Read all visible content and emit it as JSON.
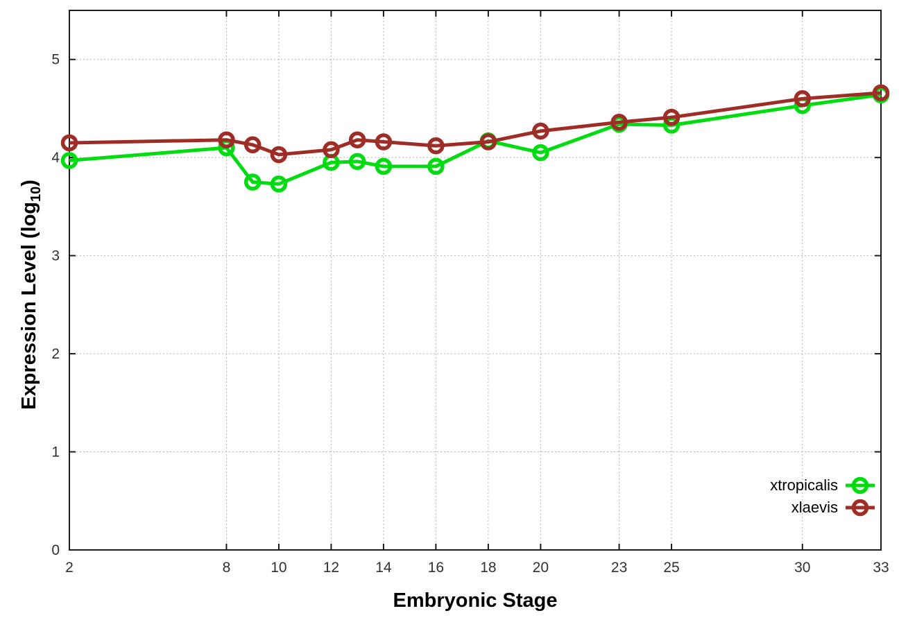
{
  "chart_data": {
    "type": "line",
    "title": "",
    "xlabel": "Embryonic Stage",
    "ylabel": {
      "prefix": "Expression Level (log",
      "sub": "10",
      "suffix": ")"
    },
    "x": [
      2,
      8,
      9,
      10,
      12,
      13,
      14,
      16,
      18,
      20,
      23,
      25,
      30,
      33
    ],
    "series": [
      {
        "name": "xtropicalis",
        "color": "#00dc10",
        "values": [
          3.97,
          4.1,
          3.75,
          3.73,
          3.95,
          3.96,
          3.91,
          3.91,
          4.17,
          4.05,
          4.34,
          4.33,
          4.53,
          4.64
        ]
      },
      {
        "name": "xlaevis",
        "color": "#9e2d27",
        "values": [
          4.15,
          4.18,
          4.13,
          4.03,
          4.08,
          4.18,
          4.16,
          4.12,
          4.16,
          4.27,
          4.36,
          4.41,
          4.6,
          4.66
        ]
      }
    ],
    "xlim": [
      2,
      33
    ],
    "ylim": [
      0,
      5.5
    ],
    "xticks": [
      2,
      8,
      10,
      12,
      14,
      16,
      18,
      20,
      23,
      25,
      30,
      33
    ],
    "yticks": [
      0,
      1,
      2,
      3,
      4,
      5
    ],
    "grid": "dotted",
    "marker": "open-circle",
    "legend": {
      "position": "inside-right",
      "entries": [
        "xtropicalis",
        "xlaevis"
      ]
    }
  }
}
